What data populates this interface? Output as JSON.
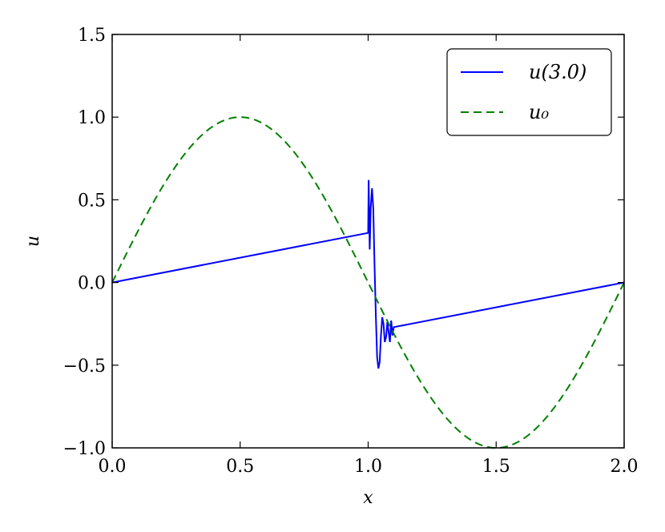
{
  "chart_data": {
    "type": "line",
    "xlabel": "x",
    "ylabel": "u",
    "xlim": [
      0.0,
      2.0
    ],
    "ylim": [
      -1.0,
      1.5
    ],
    "xticks": [
      0.0,
      0.5,
      1.0,
      1.5,
      2.0
    ],
    "xtick_labels": [
      "0.0",
      "0.5",
      "1.0",
      "1.5",
      "2.0"
    ],
    "yticks": [
      -1.0,
      -0.5,
      0.0,
      0.5,
      1.0,
      1.5
    ],
    "ytick_labels": [
      "−1.0",
      "−0.5",
      "0.0",
      "0.5",
      "1.0",
      "1.5"
    ],
    "grid": false,
    "legend_position": "top-right",
    "series": [
      {
        "name": "u(3.0)",
        "color": "#0000ff",
        "style": "solid",
        "x": [
          0.0,
          1.0,
          1.002,
          1.004,
          1.006,
          1.01,
          1.015,
          1.02,
          1.025,
          1.03,
          1.035,
          1.04,
          1.045,
          1.05,
          1.055,
          1.06,
          1.065,
          1.07,
          1.075,
          1.08,
          1.085,
          1.09,
          1.095,
          1.1,
          2.0
        ],
        "y": [
          0.0,
          0.3,
          0.62,
          0.4,
          0.2,
          0.45,
          0.57,
          0.45,
          0.1,
          -0.2,
          -0.45,
          -0.52,
          -0.48,
          -0.32,
          -0.21,
          -0.25,
          -0.36,
          -0.33,
          -0.24,
          -0.3,
          -0.36,
          -0.23,
          -0.32,
          -0.27,
          0.0
        ]
      },
      {
        "name": "u₀",
        "color": "#008000",
        "style": "dashed",
        "function": "sin(pi*x)"
      }
    ]
  }
}
